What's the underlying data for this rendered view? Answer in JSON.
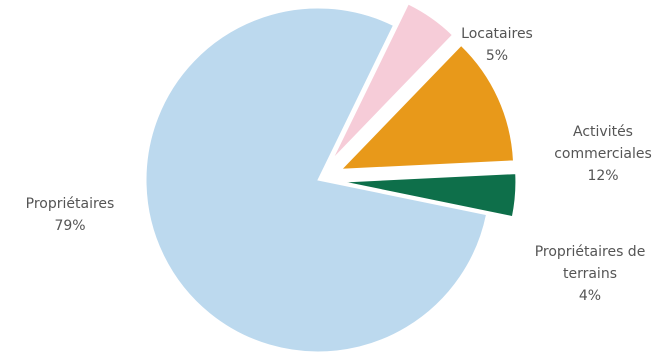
{
  "chart_data": {
    "type": "pie",
    "title": "",
    "exploded": true,
    "start_angle_clockwise_from_north": 26,
    "slices": [
      {
        "label_lines": [
          "Locataires"
        ],
        "value": 5,
        "value_label": "5%",
        "color": "#f6ccd8"
      },
      {
        "label_lines": [
          "Activités",
          "commerciales"
        ],
        "value": 12,
        "value_label": "12%",
        "color": "#e8991a"
      },
      {
        "label_lines": [
          "Propriétaires de",
          "terrains"
        ],
        "value": 4,
        "value_label": "4%",
        "color": "#0e6f4a"
      },
      {
        "label_lines": [
          "Propriétaires"
        ],
        "value": 79,
        "value_label": "79%",
        "color": "#bcd9ee"
      }
    ]
  }
}
